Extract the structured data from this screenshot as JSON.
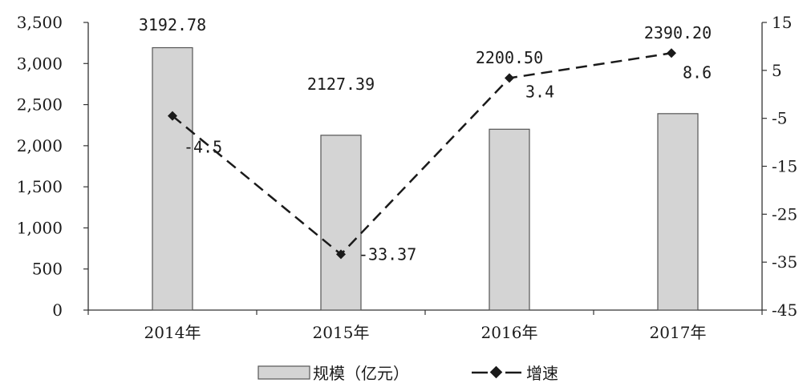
{
  "chart_data": {
    "type": "bar",
    "categories": [
      "2014年",
      "2015年",
      "2016年",
      "2017年"
    ],
    "series": [
      {
        "name": "规模（亿元）",
        "type": "bar",
        "axis": "left",
        "values": [
          3192.78,
          2127.39,
          2200.5,
          2390.2
        ],
        "labels": [
          "3192.78",
          "2127.39",
          "2200.50",
          "2390.20"
        ]
      },
      {
        "name": "增速",
        "type": "line",
        "axis": "right",
        "values": [
          -4.5,
          -33.37,
          3.4,
          8.6
        ],
        "labels": [
          "-4.5",
          "-33.37",
          "3.4",
          "8.6"
        ]
      }
    ],
    "y_left": {
      "lim": [
        0,
        3500
      ],
      "ticks": [
        0,
        500,
        1000,
        1500,
        2000,
        2500,
        3000,
        3500
      ],
      "tick_labels": [
        "0",
        "500",
        "1,000",
        "1,500",
        "2,000",
        "2,500",
        "3,000",
        "3,500"
      ]
    },
    "y_right": {
      "lim": [
        -45,
        15
      ],
      "ticks": [
        -45,
        -35,
        -25,
        -15,
        -5,
        5,
        15
      ],
      "tick_labels": [
        "-45",
        "-35",
        "-25",
        "-15",
        "-5",
        "5",
        "15"
      ]
    },
    "legend": {
      "position": "bottom"
    },
    "grid": false,
    "colors": {
      "bar_fill": "#d4d4d4",
      "bar_stroke": "#555555",
      "line": "#1a1a1a",
      "axis": "#333333"
    }
  }
}
